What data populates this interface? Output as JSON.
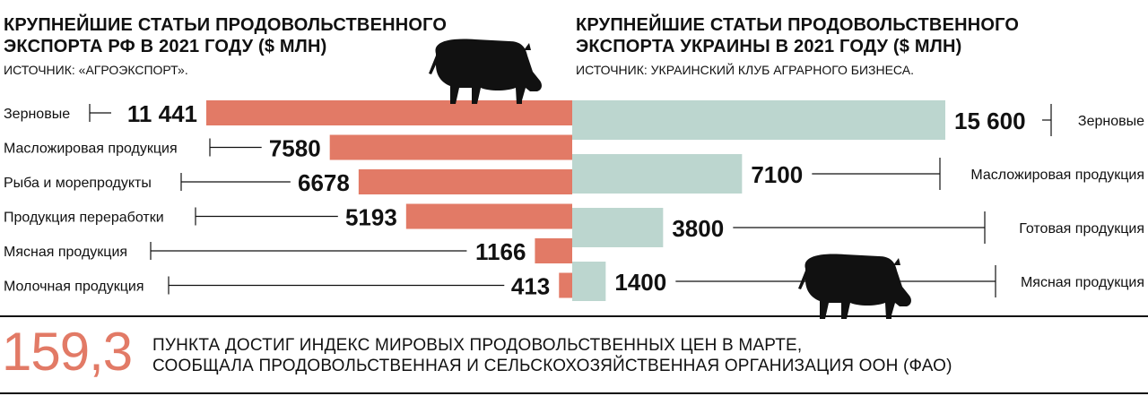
{
  "russia": {
    "title_line1": "КРУПНЕЙШИЕ СТАТЬИ ПРОДОВОЛЬСТВЕННОГО",
    "title_line2": "ЭКСПОРТА РФ В 2021 ГОДУ ($ МЛН)",
    "source": "ИСТОЧНИК: «АГРОЭКСПОРТ»."
  },
  "ukraine": {
    "title_line1": "КРУПНЕЙШИЕ СТАТЬИ ПРОДОВОЛЬСТВЕННОГО",
    "title_line2": "ЭКСПОРТА УКРАИНЫ В 2021 ГОДУ ($ МЛН)",
    "source": "ИСТОЧНИК: УКРАИНСКИЙ КЛУБ АГРАРНОГО БИЗНЕСА."
  },
  "footer": {
    "big_number": "159,3",
    "line1": "ПУНКТА ДОСТИГ ИНДЕКС МИРОВЫХ ПРОДОВОЛЬСТВЕННЫХ ЦЕН В МАРТЕ,",
    "line2": "СООБЩАЛА ПРОДОВОЛЬСТВЕННАЯ И СЕЛЬСКОХОЗЯЙСТВЕННАЯ ОРГАНИЗАЦИЯ ООН (ФАО)"
  },
  "colors": {
    "russia_bar": "#e27a66",
    "ukraine_bar": "#bcd6cf",
    "text": "#111111",
    "accent": "#e27a66"
  },
  "icons": [
    "cow-icon",
    "cow-icon"
  ],
  "chart_data": [
    {
      "type": "bar",
      "orientation": "horizontal",
      "direction": "leftward",
      "title": "КРУПНЕЙШИЕ СТАТЬИ ПРОДОВОЛЬСТВЕННОГО ЭКСПОРТА РФ В 2021 ГОДУ ($ МЛН)",
      "categories": [
        "Зерновые",
        "Масложировая продукция",
        "Рыба и морепродукты",
        "Продукция переработки",
        "Мясная продукция",
        "Молочная продукция"
      ],
      "values": [
        11441,
        7580,
        6678,
        5193,
        1166,
        413
      ],
      "value_labels": [
        "11 441",
        "7580",
        "6678",
        "5193",
        "1166",
        "413"
      ],
      "unit": "$ млн",
      "xlim": [
        0,
        11441
      ]
    },
    {
      "type": "bar",
      "orientation": "horizontal",
      "direction": "rightward",
      "title": "КРУПНЕЙШИЕ СТАТЬИ ПРОДОВОЛЬСТВЕННОГО ЭКСПОРТА УКРАИНЫ В 2021 ГОДУ ($ МЛН)",
      "categories": [
        "Зерновые",
        "Масложировая продукция",
        "Готовая продукция",
        "Мясная продукция"
      ],
      "values": [
        15600,
        7100,
        3800,
        1400
      ],
      "value_labels": [
        "15 600",
        "7100",
        "3800",
        "1400"
      ],
      "unit": "$ млн",
      "xlim": [
        0,
        15600
      ]
    }
  ]
}
